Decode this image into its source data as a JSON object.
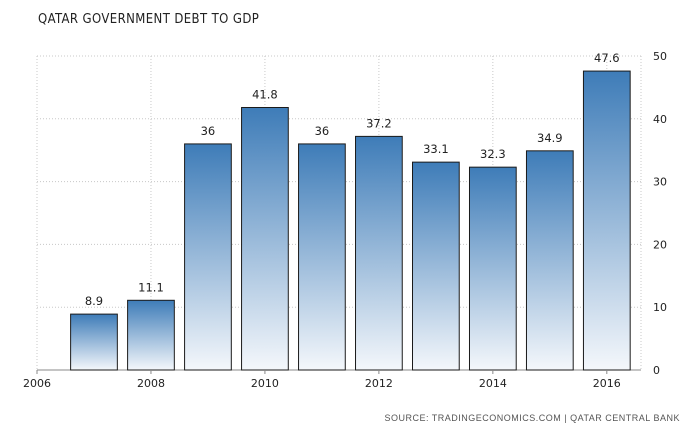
{
  "title": "QATAR GOVERNMENT DEBT TO GDP",
  "source": "SOURCE: TRADINGECONOMICS.COM | QATAR CENTRAL BANK",
  "colors": {
    "bar_top": "#3e7cb8",
    "bar_bottom": "#f4f7fb",
    "bar_border": "#1a1a1a",
    "grid": "#c8c8c8"
  },
  "chart_data": {
    "type": "bar",
    "title": "QATAR GOVERNMENT DEBT TO GDP",
    "x": [
      2007,
      2008,
      2009,
      2010,
      2011,
      2012,
      2013,
      2014,
      2015,
      2016
    ],
    "values": [
      8.9,
      11.1,
      36,
      41.8,
      36,
      37.2,
      33.1,
      32.3,
      34.9,
      47.6
    ],
    "data_labels": [
      "8.9",
      "11.1",
      "36",
      "41.8",
      "36",
      "37.2",
      "33.1",
      "32.3",
      "34.9",
      "47.6"
    ],
    "xlim": [
      2006,
      2016.6
    ],
    "ylim": [
      0,
      50
    ],
    "x_ticks": [
      "2006",
      "2008",
      "2010",
      "2012",
      "2014",
      "2016"
    ],
    "y_ticks": [
      "0",
      "10",
      "20",
      "30",
      "40",
      "50"
    ],
    "y_axis_side": "right",
    "grid": true,
    "grid_style": "dotted"
  }
}
